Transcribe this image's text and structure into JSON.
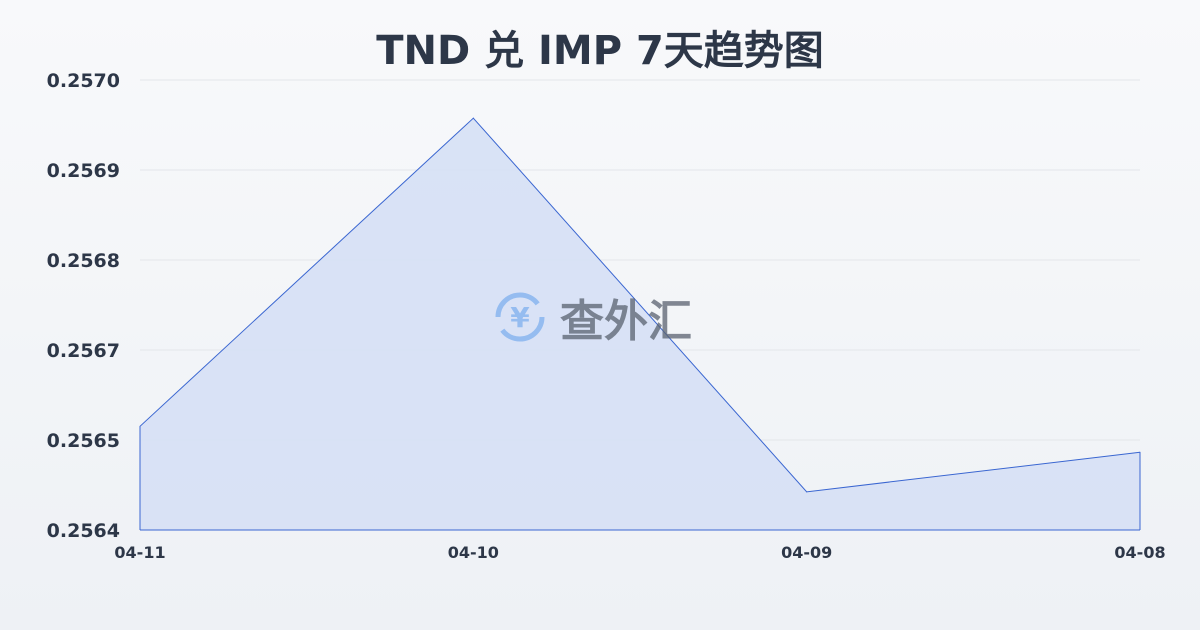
{
  "title": "TND 兑 IMP 7天趋势图",
  "watermark": "查外汇",
  "colors": {
    "line": "#3a66d1",
    "fill": "#d6e0f5",
    "grid": "#e3e6ea",
    "text": "#2d3748"
  },
  "chart_data": {
    "type": "area",
    "title": "TND 兑 IMP 7天趋势图",
    "categories": [
      "04-11",
      "04-10",
      "04-09",
      "04-08"
    ],
    "values": [
      0.256544,
      0.256972,
      0.256453,
      0.256508
    ],
    "ylim": [
      0.2564,
      0.257025
    ],
    "yticks": [
      0.2564,
      0.256525,
      0.25665,
      0.256775,
      0.2569,
      0.257025
    ],
    "ytick_labels": [
      "0.2564",
      "0.2565",
      "0.2567",
      "0.2568",
      "0.2569",
      "0.2570"
    ],
    "grid": true
  }
}
